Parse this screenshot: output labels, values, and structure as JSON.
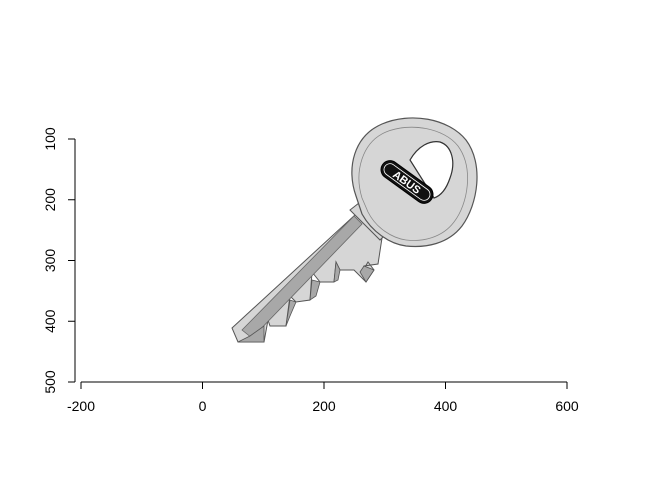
{
  "chart_data": {
    "type": "image-plot",
    "title": "",
    "xlabel": "",
    "ylabel": "",
    "xlim": [
      -200,
      600
    ],
    "ylim": [
      500,
      100
    ],
    "x_ticks": [
      -200,
      0,
      200,
      400,
      600
    ],
    "y_ticks": [
      100,
      200,
      300,
      400,
      500
    ],
    "y_axis_reversed": true,
    "grid": false,
    "image": {
      "description_icon": "key-icon",
      "brand_text": "ABUS",
      "colors": {
        "key_body": "#d6d6d6",
        "key_shadow": "#a8a8a8",
        "outline": "#555555",
        "brand_bg": "#111111",
        "brand_text": "#ffffff"
      }
    }
  }
}
